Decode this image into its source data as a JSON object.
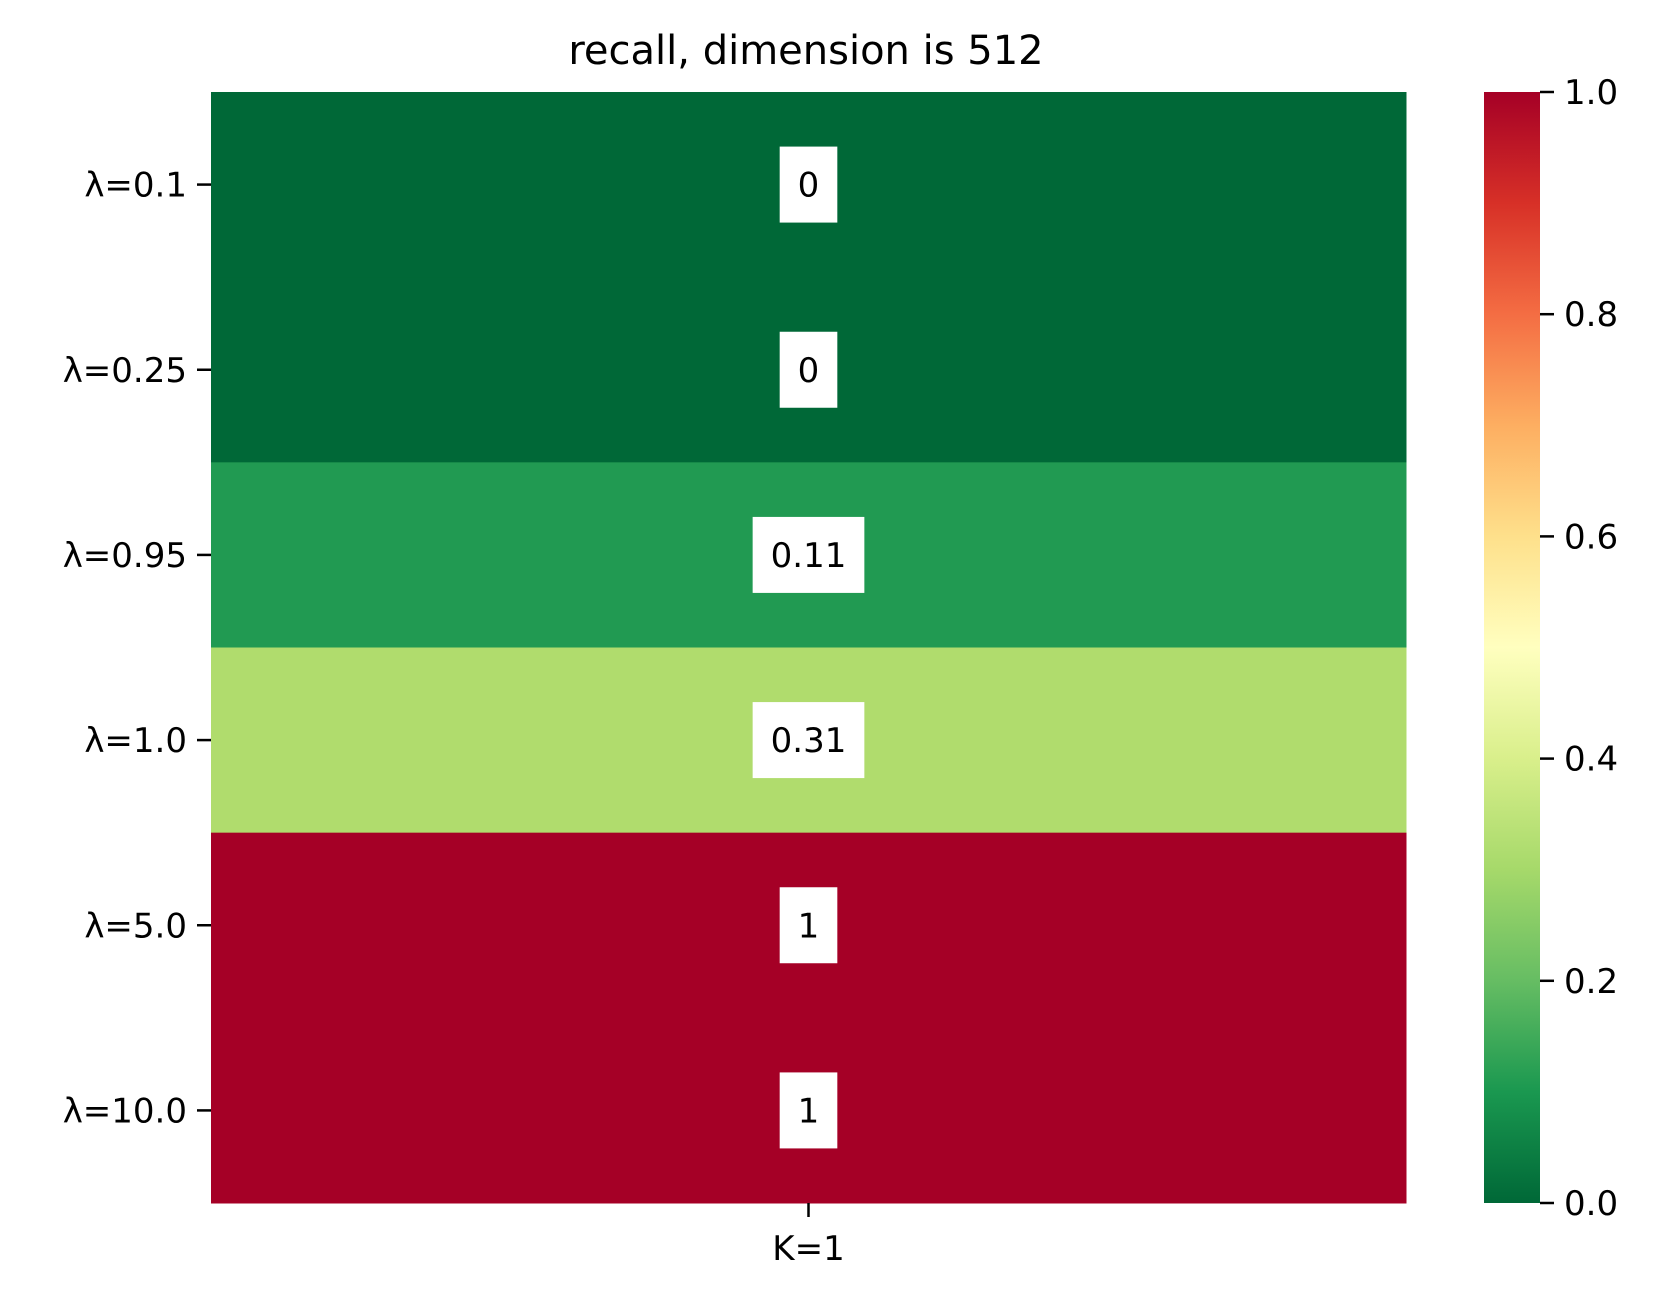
{
  "chart_data": {
    "type": "heatmap",
    "title": "recall, dimension is 512",
    "rows": [
      "λ=0.1",
      "λ=0.25",
      "λ=0.95",
      "λ=1.0",
      "λ=5.0",
      "λ=10.0"
    ],
    "columns": [
      "K=1"
    ],
    "values": [
      [
        0
      ],
      [
        0
      ],
      [
        0.11
      ],
      [
        0.31
      ],
      [
        1
      ],
      [
        1
      ]
    ],
    "cell_labels": [
      [
        "0"
      ],
      [
        "0"
      ],
      [
        "0.11"
      ],
      [
        "0.31"
      ],
      [
        "1"
      ],
      [
        "1"
      ]
    ],
    "colormap": "RdYlGn_r",
    "vmin": 0.0,
    "vmax": 1.0,
    "colorbar_ticks": [
      "0.0",
      "0.2",
      "0.4",
      "0.6",
      "0.8",
      "1.0"
    ],
    "colorbar_stops": [
      {
        "value": 0.0,
        "color": "#006837"
      },
      {
        "value": 0.1,
        "color": "#1a9850"
      },
      {
        "value": 0.2,
        "color": "#66bd63"
      },
      {
        "value": 0.3,
        "color": "#a6d96a"
      },
      {
        "value": 0.4,
        "color": "#d9ef8b"
      },
      {
        "value": 0.5,
        "color": "#ffffbf"
      },
      {
        "value": 0.6,
        "color": "#fee08b"
      },
      {
        "value": 0.7,
        "color": "#fdae61"
      },
      {
        "value": 0.8,
        "color": "#f46d43"
      },
      {
        "value": 0.9,
        "color": "#d73027"
      },
      {
        "value": 1.0,
        "color": "#a50026"
      }
    ],
    "cell_colors": [
      "#006837",
      "#006837",
      "#219a52",
      "#b0dc6d",
      "#a50026",
      "#a50026"
    ],
    "annotation_box_color": "#ffffff"
  }
}
